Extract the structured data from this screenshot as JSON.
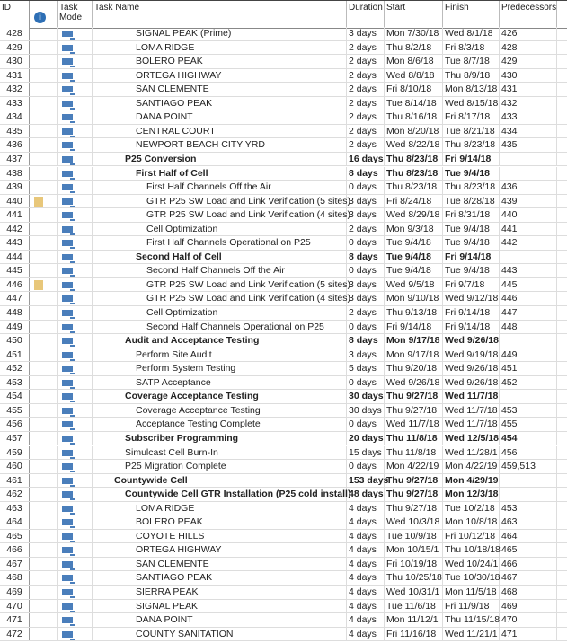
{
  "header": {
    "id": "ID",
    "info_icon": "info-icon",
    "mode": "Task Mode",
    "name": "Task Name",
    "duration": "Duration",
    "start": "Start",
    "finish": "Finish",
    "pred": "Predecessors"
  },
  "colors": {
    "task_mode_icon": "#4a7ebb",
    "note_icon": "#e8c77a",
    "info_icon": "#2e6fb5"
  },
  "rows": [
    {
      "id": "428",
      "name": "SIGNAL PEAK (Prime)",
      "level": 2,
      "dur": "3 days",
      "start": "Mon 7/30/18",
      "finish": "Wed 8/1/18",
      "pred": "426"
    },
    {
      "id": "429",
      "name": "LOMA RIDGE",
      "level": 2,
      "dur": "2 days",
      "start": "Thu 8/2/18",
      "finish": "Fri 8/3/18",
      "pred": "428"
    },
    {
      "id": "430",
      "name": "BOLERO PEAK",
      "level": 2,
      "dur": "2 days",
      "start": "Mon 8/6/18",
      "finish": "Tue 8/7/18",
      "pred": "429"
    },
    {
      "id": "431",
      "name": "ORTEGA HIGHWAY",
      "level": 2,
      "dur": "2 days",
      "start": "Wed 8/8/18",
      "finish": "Thu 8/9/18",
      "pred": "430"
    },
    {
      "id": "432",
      "name": "SAN CLEMENTE",
      "level": 2,
      "dur": "2 days",
      "start": "Fri 8/10/18",
      "finish": "Mon 8/13/18",
      "pred": "431"
    },
    {
      "id": "433",
      "name": "SANTIAGO PEAK",
      "level": 2,
      "dur": "2 days",
      "start": "Tue 8/14/18",
      "finish": "Wed 8/15/18",
      "pred": "432"
    },
    {
      "id": "434",
      "name": "DANA POINT",
      "level": 2,
      "dur": "2 days",
      "start": "Thu 8/16/18",
      "finish": "Fri 8/17/18",
      "pred": "433"
    },
    {
      "id": "435",
      "name": "CENTRAL COURT",
      "level": 2,
      "dur": "2 days",
      "start": "Mon 8/20/18",
      "finish": "Tue 8/21/18",
      "pred": "434"
    },
    {
      "id": "436",
      "name": "NEWPORT BEACH CITY YRD",
      "level": 2,
      "dur": "2 days",
      "start": "Wed 8/22/18",
      "finish": "Thu 8/23/18",
      "pred": "435"
    },
    {
      "id": "437",
      "name": "P25 Conversion",
      "level": 1,
      "bold": true,
      "dur": "16 days",
      "start": "Thu 8/23/18",
      "finish": "Fri 9/14/18",
      "pred": ""
    },
    {
      "id": "438",
      "name": "First Half of Cell",
      "level": 2,
      "bold": true,
      "dur": "8 days",
      "start": "Thu 8/23/18",
      "finish": "Tue 9/4/18",
      "pred": ""
    },
    {
      "id": "439",
      "name": "First Half Channels Off the Air",
      "level": 3,
      "dur": "0 days",
      "start": "Thu 8/23/18",
      "finish": "Thu 8/23/18",
      "pred": "436"
    },
    {
      "id": "440",
      "name": "GTR P25 SW Load and Link Verification (5 sites)",
      "level": 3,
      "note": true,
      "dur": "3 days",
      "start": "Fri 8/24/18",
      "finish": "Tue 8/28/18",
      "pred": "439"
    },
    {
      "id": "441",
      "name": "GTR P25 SW Load and Link Verification (4 sites)",
      "level": 3,
      "dur": "3 days",
      "start": "Wed 8/29/18",
      "finish": "Fri 8/31/18",
      "pred": "440"
    },
    {
      "id": "442",
      "name": "Cell Optimization",
      "level": 3,
      "dur": "2 days",
      "start": "Mon 9/3/18",
      "finish": "Tue 9/4/18",
      "pred": "441"
    },
    {
      "id": "443",
      "name": "First Half Channels Operational on P25",
      "level": 3,
      "dur": "0 days",
      "start": "Tue 9/4/18",
      "finish": "Tue 9/4/18",
      "pred": "442"
    },
    {
      "id": "444",
      "name": "Second Half of Cell",
      "level": 2,
      "bold": true,
      "dur": "8 days",
      "start": "Tue 9/4/18",
      "finish": "Fri 9/14/18",
      "pred": ""
    },
    {
      "id": "445",
      "name": "Second Half Channels Off the Air",
      "level": 3,
      "dur": "0 days",
      "start": "Tue 9/4/18",
      "finish": "Tue 9/4/18",
      "pred": "443"
    },
    {
      "id": "446",
      "name": "GTR P25 SW Load and Link Verification (5 sites)",
      "level": 3,
      "note": true,
      "dur": "3 days",
      "start": "Wed 9/5/18",
      "finish": "Fri 9/7/18",
      "pred": "445"
    },
    {
      "id": "447",
      "name": "GTR P25 SW Load and Link Verification (4 sites)",
      "level": 3,
      "dur": "3 days",
      "start": "Mon 9/10/18",
      "finish": "Wed 9/12/18",
      "pred": "446"
    },
    {
      "id": "448",
      "name": "Cell Optimization",
      "level": 3,
      "dur": "2 days",
      "start": "Thu 9/13/18",
      "finish": "Fri 9/14/18",
      "pred": "447"
    },
    {
      "id": "449",
      "name": "Second Half Channels Operational on P25",
      "level": 3,
      "dur": "0 days",
      "start": "Fri 9/14/18",
      "finish": "Fri 9/14/18",
      "pred": "448"
    },
    {
      "id": "450",
      "name": "Audit and Acceptance Testing",
      "level": 1,
      "bold": true,
      "dur": "8 days",
      "start": "Mon 9/17/18",
      "finish": "Wed 9/26/18",
      "pred": ""
    },
    {
      "id": "451",
      "name": "Perform Site Audit",
      "level": 2,
      "dur": "3 days",
      "start": "Mon 9/17/18",
      "finish": "Wed 9/19/18",
      "pred": "449"
    },
    {
      "id": "452",
      "name": "Perform System Testing",
      "level": 2,
      "dur": "5 days",
      "start": "Thu 9/20/18",
      "finish": "Wed 9/26/18",
      "pred": "451"
    },
    {
      "id": "453",
      "name": "SATP Acceptance",
      "level": 2,
      "dur": "0 days",
      "start": "Wed 9/26/18",
      "finish": "Wed 9/26/18",
      "pred": "452"
    },
    {
      "id": "454",
      "name": "Coverage Acceptance Testing",
      "level": 1,
      "bold": true,
      "dur": "30 days",
      "start": "Thu 9/27/18",
      "finish": "Wed 11/7/18",
      "pred": ""
    },
    {
      "id": "455",
      "name": "Coverage Acceptance Testing",
      "level": 2,
      "dur": "30 days",
      "start": "Thu 9/27/18",
      "finish": "Wed 11/7/18",
      "pred": "453"
    },
    {
      "id": "456",
      "name": "Acceptance Testing Complete",
      "level": 2,
      "dur": "0 days",
      "start": "Wed 11/7/18",
      "finish": "Wed 11/7/18",
      "pred": "455"
    },
    {
      "id": "457",
      "name": "Subscriber Programming",
      "level": 1,
      "bold": true,
      "dur": "20 days",
      "start": "Thu 11/8/18",
      "finish": "Wed 12/5/18",
      "pred": "454"
    },
    {
      "id": "459",
      "name": "Simulcast Cell Burn-In",
      "level": 1,
      "dur": "15 days",
      "start": "Thu 11/8/18",
      "finish": "Wed 11/28/1",
      "pred": "456"
    },
    {
      "id": "460",
      "name": "P25 Migration Complete",
      "level": 1,
      "dur": "0 days",
      "start": "Mon 4/22/19",
      "finish": "Mon 4/22/19",
      "pred": "459,513"
    },
    {
      "id": "461",
      "name": "Countywide Cell",
      "level": 0,
      "bold": true,
      "dur": "153 days",
      "start": "Thu 9/27/18",
      "finish": "Mon 4/29/19",
      "pred": ""
    },
    {
      "id": "462",
      "name": "Countywide Cell GTR Installation (P25 cold install)",
      "level": 1,
      "bold": true,
      "dur": "48 days",
      "start": "Thu 9/27/18",
      "finish": "Mon 12/3/18",
      "pred": ""
    },
    {
      "id": "463",
      "name": "LOMA RIDGE",
      "level": 2,
      "dur": "4 days",
      "start": "Thu 9/27/18",
      "finish": "Tue 10/2/18",
      "pred": "453"
    },
    {
      "id": "464",
      "name": "BOLERO PEAK",
      "level": 2,
      "dur": "4 days",
      "start": "Wed 10/3/18",
      "finish": "Mon 10/8/18",
      "pred": "463"
    },
    {
      "id": "465",
      "name": "COYOTE HILLS",
      "level": 2,
      "dur": "4 days",
      "start": "Tue 10/9/18",
      "finish": "Fri 10/12/18",
      "pred": "464"
    },
    {
      "id": "466",
      "name": "ORTEGA HIGHWAY",
      "level": 2,
      "dur": "4 days",
      "start": "Mon 10/15/1",
      "finish": "Thu 10/18/18",
      "pred": "465"
    },
    {
      "id": "467",
      "name": "SAN CLEMENTE",
      "level": 2,
      "dur": "4 days",
      "start": "Fri 10/19/18",
      "finish": "Wed 10/24/1",
      "pred": "466"
    },
    {
      "id": "468",
      "name": "SANTIAGO PEAK",
      "level": 2,
      "dur": "4 days",
      "start": "Thu 10/25/18",
      "finish": "Tue 10/30/18",
      "pred": "467"
    },
    {
      "id": "469",
      "name": "SIERRA PEAK",
      "level": 2,
      "dur": "4 days",
      "start": "Wed 10/31/1",
      "finish": "Mon 11/5/18",
      "pred": "468"
    },
    {
      "id": "470",
      "name": "SIGNAL PEAK",
      "level": 2,
      "dur": "4 days",
      "start": "Tue 11/6/18",
      "finish": "Fri 11/9/18",
      "pred": "469"
    },
    {
      "id": "471",
      "name": "DANA POINT",
      "level": 2,
      "dur": "4 days",
      "start": "Mon 11/12/1",
      "finish": "Thu 11/15/18",
      "pred": "470"
    },
    {
      "id": "472",
      "name": "COUNTY SANITATION",
      "level": 2,
      "dur": "4 days",
      "start": "Fri 11/16/18",
      "finish": "Wed 11/21/1",
      "pred": "471"
    }
  ]
}
